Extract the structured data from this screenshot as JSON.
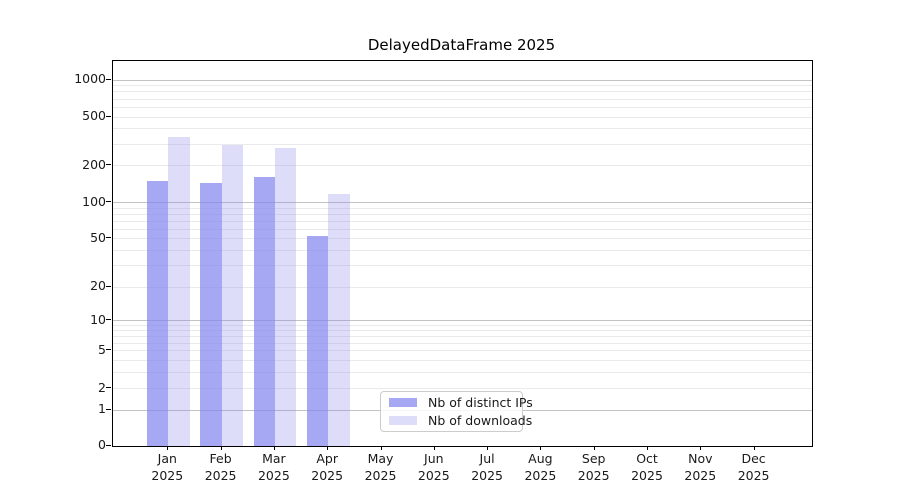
{
  "chart_data": {
    "type": "bar",
    "title": "DelayedDataFrame 2025",
    "x_axis": {
      "categories": [
        {
          "month": "Jan",
          "year": "2025"
        },
        {
          "month": "Feb",
          "year": "2025"
        },
        {
          "month": "Mar",
          "year": "2025"
        },
        {
          "month": "Apr",
          "year": "2025"
        },
        {
          "month": "May",
          "year": "2025"
        },
        {
          "month": "Jun",
          "year": "2025"
        },
        {
          "month": "Jul",
          "year": "2025"
        },
        {
          "month": "Aug",
          "year": "2025"
        },
        {
          "month": "Sep",
          "year": "2025"
        },
        {
          "month": "Oct",
          "year": "2025"
        },
        {
          "month": "Nov",
          "year": "2025"
        },
        {
          "month": "Dec",
          "year": "2025"
        }
      ]
    },
    "y_axis": {
      "scale": "symlog",
      "ylim": [
        0,
        1430
      ],
      "grid": true,
      "ticks": [
        {
          "v": 0,
          "label": "0",
          "f": 0.0
        },
        {
          "v": 1,
          "label": "1",
          "f": 0.0927
        },
        {
          "v": 2,
          "label": "2",
          "f": 0.1488
        },
        {
          "v": 5,
          "label": "5",
          "f": 0.2468
        },
        {
          "v": 10,
          "label": "10",
          "f": 0.3247
        },
        {
          "v": 20,
          "label": "20",
          "f": 0.4117
        },
        {
          "v": 50,
          "label": "50",
          "f": 0.5384
        },
        {
          "v": 100,
          "label": "100",
          "f": 0.6319
        },
        {
          "v": 200,
          "label": "200",
          "f": 0.7273
        },
        {
          "v": 500,
          "label": "500",
          "f": 0.8545
        },
        {
          "v": 1000,
          "label": "1000",
          "f": 0.9506
        }
      ],
      "major_gridlines": [
        1,
        10,
        100,
        1000
      ],
      "minor_gridlines": [
        2,
        3,
        4,
        5,
        6,
        7,
        8,
        9,
        20,
        30,
        40,
        50,
        60,
        70,
        80,
        90,
        200,
        300,
        400,
        500,
        600,
        700,
        800,
        900
      ]
    },
    "series": [
      {
        "name": "Nb of distinct IPs",
        "color": "rgba(132,134,238,0.72)",
        "values": [
          150,
          144,
          161,
          53,
          null,
          null,
          null,
          null,
          null,
          null,
          null,
          null
        ]
      },
      {
        "name": "Nb of downloads",
        "color": "rgba(132,134,238,0.28)",
        "values": [
          345,
          296,
          280,
          119,
          null,
          null,
          null,
          null,
          null,
          null,
          null,
          null
        ]
      }
    ],
    "legend": {
      "entries": [
        "Nb of distinct IPs",
        "Nb of downloads"
      ],
      "position": "lower center"
    }
  },
  "colors": {
    "bar_base": "#8486ee",
    "grid_major": "#c3c3c3",
    "grid_minor": "#eaeaea",
    "spine": "#000000",
    "background": "#ffffff"
  }
}
